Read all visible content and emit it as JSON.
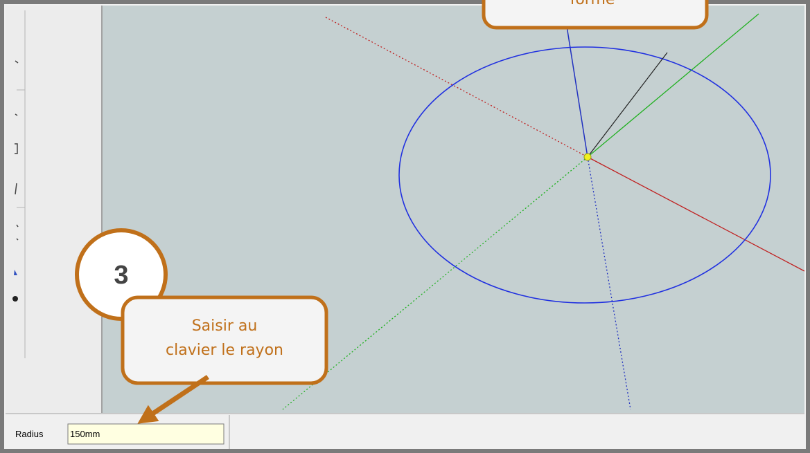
{
  "top_callout": {
    "text": "forme"
  },
  "step": {
    "number": "3"
  },
  "callout": {
    "lines": [
      "Saisir au",
      "clavier le rayon"
    ]
  },
  "status_bar": {
    "label": "Radius",
    "input_value": "150mm"
  }
}
